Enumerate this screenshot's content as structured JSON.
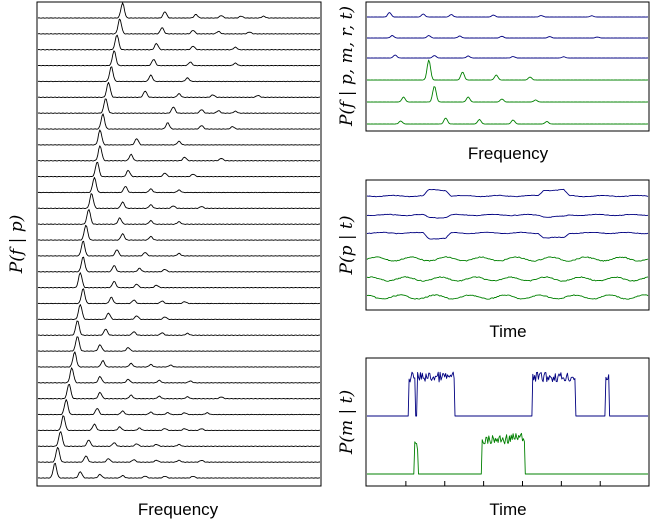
{
  "chart_data": [
    {
      "type": "line",
      "panel": "left",
      "ylabel": "P(f | p)",
      "xlabel": "Frequency",
      "series_count": 30,
      "color": "#000000",
      "grid": false,
      "peak_positions_freq_fraction": [
        [
          0.3,
          0.45,
          0.56,
          0.65,
          0.72,
          0.8
        ],
        [
          0.29,
          0.44,
          0.55,
          0.64,
          0.75
        ],
        [
          0.28,
          0.42,
          0.55,
          0.7
        ],
        [
          0.27,
          0.41,
          0.54,
          0.7
        ],
        [
          0.26,
          0.4,
          0.53
        ],
        [
          0.25,
          0.38,
          0.5,
          0.62,
          0.78
        ],
        [
          0.24,
          0.48,
          0.58,
          0.64,
          0.7
        ],
        [
          0.23,
          0.46,
          0.58,
          0.69
        ],
        [
          0.22,
          0.35,
          0.5
        ],
        [
          0.22,
          0.33,
          0.52,
          0.65
        ],
        [
          0.21,
          0.32,
          0.45,
          0.55
        ],
        [
          0.2,
          0.31,
          0.4,
          0.5
        ],
        [
          0.19,
          0.3,
          0.4,
          0.48,
          0.58
        ],
        [
          0.18,
          0.29,
          0.4,
          0.5
        ],
        [
          0.17,
          0.3,
          0.4
        ],
        [
          0.16,
          0.28,
          0.38,
          0.5
        ],
        [
          0.16,
          0.27,
          0.36,
          0.45
        ],
        [
          0.15,
          0.27,
          0.35,
          0.42
        ],
        [
          0.16,
          0.26,
          0.34,
          0.44,
          0.52
        ],
        [
          0.15,
          0.25,
          0.35,
          0.45
        ],
        [
          0.14,
          0.24,
          0.34,
          0.44,
          0.53
        ],
        [
          0.14,
          0.22,
          0.32
        ],
        [
          0.13,
          0.23,
          0.33,
          0.4,
          0.47
        ],
        [
          0.12,
          0.22,
          0.32,
          0.43,
          0.54
        ],
        [
          0.11,
          0.22,
          0.33,
          0.43,
          0.53,
          0.65
        ],
        [
          0.1,
          0.21,
          0.3,
          0.4,
          0.46,
          0.52,
          0.6
        ],
        [
          0.09,
          0.2,
          0.29,
          0.36,
          0.45,
          0.52,
          0.58
        ],
        [
          0.08,
          0.18,
          0.27,
          0.35,
          0.42,
          0.5
        ],
        [
          0.07,
          0.17,
          0.25,
          0.34,
          0.42,
          0.5,
          0.58
        ],
        [
          0.06,
          0.15,
          0.22,
          0.3,
          0.38,
          0.45,
          0.55
        ]
      ]
    },
    {
      "type": "line",
      "panel": "top-right",
      "ylabel": "P(f | p, m, r, t)",
      "xlabel": "Frequency",
      "grid": false,
      "series": [
        {
          "color": "#000080",
          "peaks": [
            [
              0.08,
              0.9
            ],
            [
              0.2,
              0.6
            ],
            [
              0.3,
              0.5
            ],
            [
              0.45,
              0.4
            ],
            [
              0.62,
              0.3
            ],
            [
              0.8,
              0.25
            ]
          ]
        },
        {
          "color": "#000080",
          "peaks": [
            [
              0.09,
              0.5
            ],
            [
              0.22,
              0.5
            ],
            [
              0.33,
              0.4
            ],
            [
              0.48,
              0.35
            ],
            [
              0.65,
              0.3
            ],
            [
              0.82,
              0.2
            ]
          ]
        },
        {
          "color": "#000080",
          "peaks": [
            [
              0.1,
              0.6
            ],
            [
              0.24,
              0.5
            ],
            [
              0.36,
              0.4
            ],
            [
              0.52,
              0.3
            ],
            [
              0.7,
              0.25
            ]
          ]
        },
        {
          "color": "#008000",
          "peaks": [
            [
              0.22,
              4.0
            ],
            [
              0.34,
              1.6
            ],
            [
              0.46,
              1.0
            ],
            [
              0.58,
              0.6
            ]
          ]
        },
        {
          "color": "#008000",
          "peaks": [
            [
              0.13,
              1.0
            ],
            [
              0.24,
              3.2
            ],
            [
              0.36,
              1.0
            ],
            [
              0.48,
              0.6
            ],
            [
              0.6,
              0.4
            ]
          ]
        },
        {
          "color": "#008000",
          "peaks": [
            [
              0.12,
              0.6
            ],
            [
              0.28,
              1.2
            ],
            [
              0.4,
              0.9
            ],
            [
              0.52,
              0.8
            ],
            [
              0.64,
              0.5
            ]
          ]
        }
      ]
    },
    {
      "type": "line",
      "panel": "middle-right",
      "ylabel": "P(p | t)",
      "xlabel": "Time",
      "grid": false,
      "series": [
        {
          "color": "#000080",
          "name": "",
          "steps": [
            [
              0.2,
              0.3,
              1.0
            ],
            [
              0.61,
              0.72,
              1.0
            ]
          ]
        },
        {
          "color": "#000080",
          "name": "",
          "steps": [
            [
              0.2,
              0.3,
              -0.4
            ],
            [
              0.61,
              0.72,
              -0.3
            ]
          ]
        },
        {
          "color": "#000080",
          "name": "",
          "steps": [
            [
              0.2,
              0.3,
              -0.9
            ],
            [
              0.61,
              0.72,
              -0.8
            ]
          ]
        },
        {
          "color": "#008000",
          "name": "",
          "steps": []
        },
        {
          "color": "#008000",
          "name": "",
          "steps": []
        },
        {
          "color": "#008000",
          "name": "",
          "steps": []
        }
      ]
    },
    {
      "type": "line",
      "panel": "bottom-right",
      "ylabel": "P(m | t)",
      "xlabel": "Time",
      "grid": false,
      "x_ticks": 6,
      "series": [
        {
          "color": "#000080",
          "active_segments": [
            [
              0.15,
              0.17
            ],
            [
              0.18,
              0.31
            ],
            [
              0.59,
              0.74
            ],
            [
              0.85,
              0.86
            ]
          ]
        },
        {
          "color": "#008000",
          "active_segments": [
            [
              0.17,
              0.18
            ],
            [
              0.41,
              0.56
            ]
          ]
        }
      ]
    }
  ]
}
